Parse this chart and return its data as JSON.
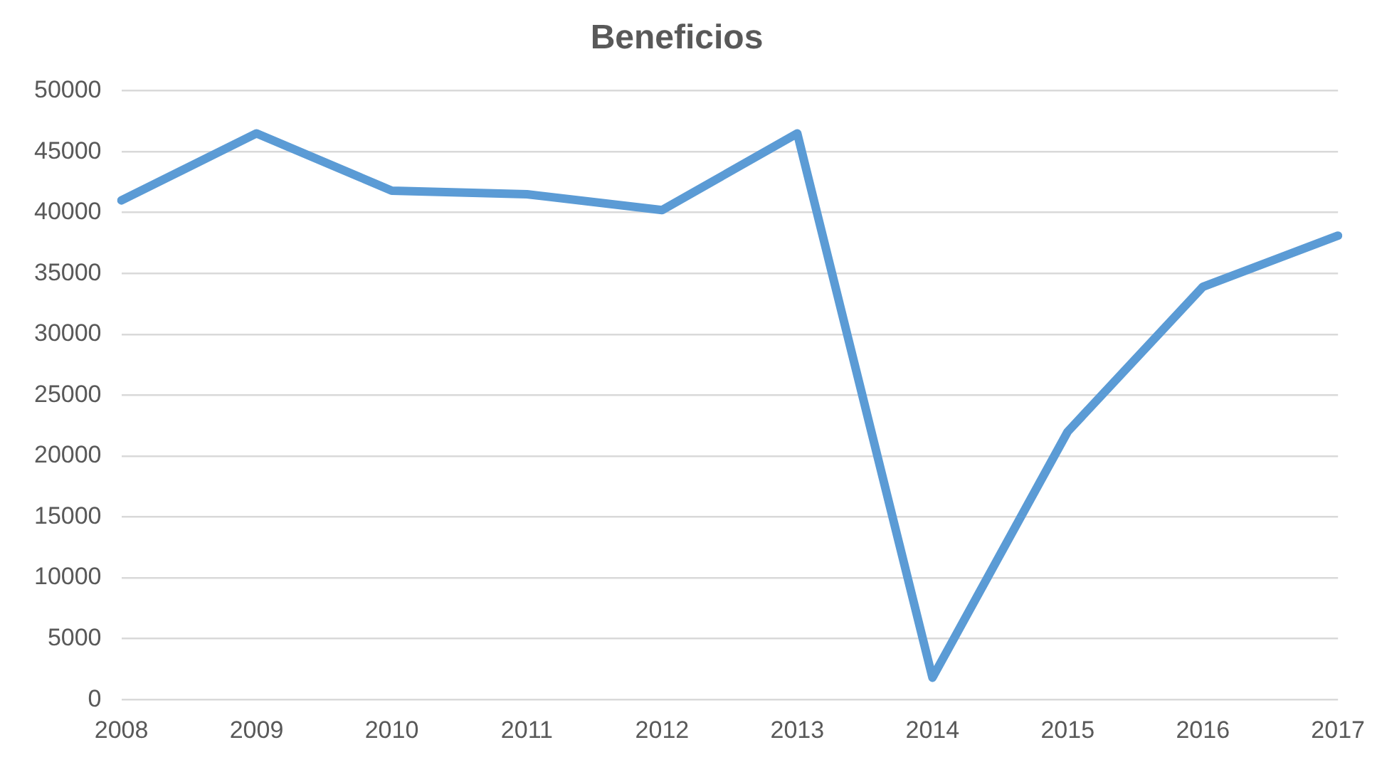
{
  "chart_data": {
    "type": "line",
    "title": "Beneficios",
    "categories": [
      "2008",
      "2009",
      "2010",
      "2011",
      "2012",
      "2013",
      "2014",
      "2015",
      "2016",
      "2017"
    ],
    "series": [
      {
        "color": "#5b9bd5",
        "values": [
          41000,
          46500,
          41800,
          41500,
          40200,
          46500,
          1800,
          22000,
          33900,
          38100
        ]
      }
    ],
    "ylim": [
      0,
      50000
    ],
    "yticks": [
      0,
      5000,
      10000,
      15000,
      20000,
      25000,
      30000,
      35000,
      40000,
      45000,
      50000
    ],
    "grid": "y",
    "legend": false,
    "marker": "none",
    "line_style": "solid"
  }
}
